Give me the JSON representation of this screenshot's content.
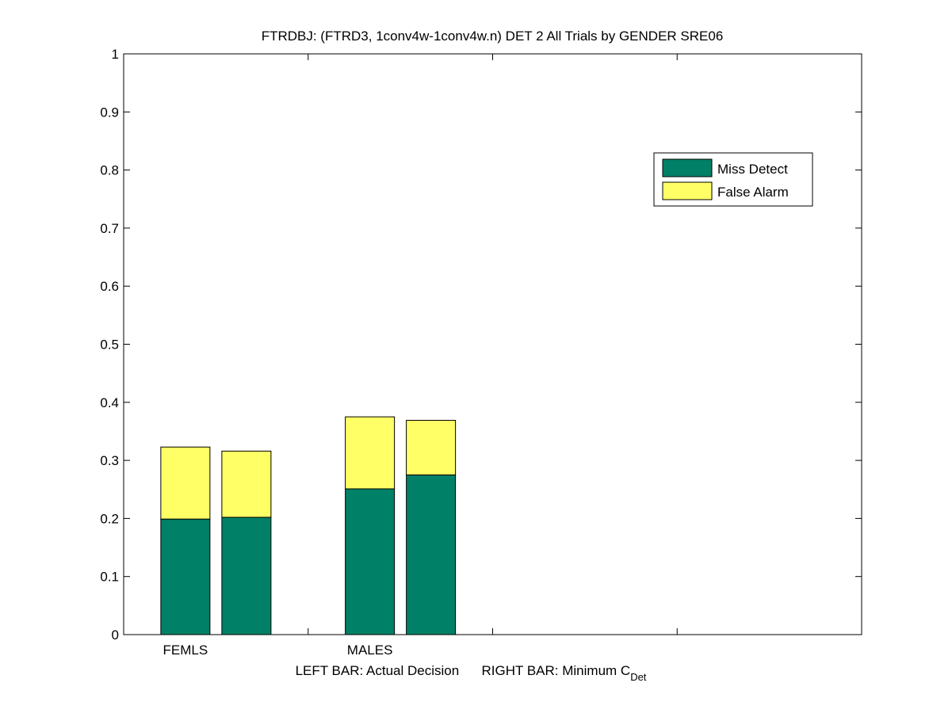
{
  "chart_data": {
    "type": "bar",
    "stacked": true,
    "title": "FTRDBJ: (FTRD3, 1conv4w-1conv4w.n) DET 2 All Trials by GENDER SRE06",
    "xlabel": {
      "left_part": "LEFT BAR: Actual Decision",
      "right_part": "RIGHT BAR: Minimum C",
      "subscript": "Det"
    },
    "ylabel": "",
    "ylim": [
      0,
      1
    ],
    "yticks": [
      "0",
      "0.1",
      "0.2",
      "0.3",
      "0.4",
      "0.5",
      "0.6",
      "0.7",
      "0.8",
      "0.9",
      "1"
    ],
    "categories": [
      "FEMLS",
      "MALES"
    ],
    "x_tick_count": 4,
    "bar_roles": [
      "Actual Decision",
      "Minimum C_Det"
    ],
    "series": [
      {
        "name": "Miss Detect",
        "color": "#008066",
        "values": [
          [
            0.199,
            0.202
          ],
          [
            0.251,
            0.275
          ]
        ]
      },
      {
        "name": "False Alarm",
        "color": "#ffff66",
        "values": [
          [
            0.124,
            0.114
          ],
          [
            0.124,
            0.094
          ]
        ]
      }
    ],
    "legend": {
      "placement": "top-right",
      "entries": [
        "Miss Detect",
        "False Alarm"
      ]
    },
    "grid": false
  }
}
